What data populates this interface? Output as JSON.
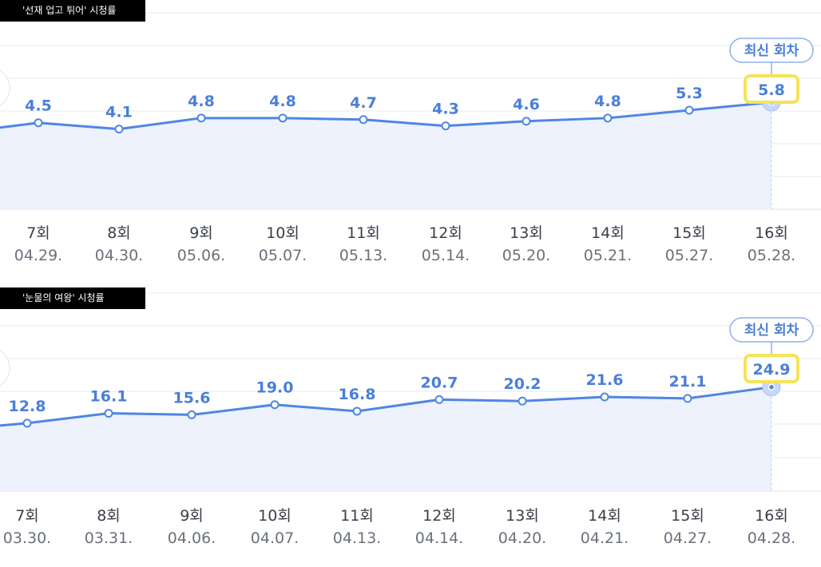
{
  "accent_color": "#4f86e3",
  "label_color": "#4a7fd8",
  "area_color": "#edf2fc",
  "highlight_color": "#f5e35a",
  "chart_data": [
    {
      "type": "area",
      "title": "'선재 업고 튀어' 시청률",
      "latest_badge": "최신 회차",
      "categories": [
        "7회",
        "8회",
        "9회",
        "10회",
        "11회",
        "12회",
        "13회",
        "14회",
        "15회",
        "16회"
      ],
      "dates": [
        "04.29.",
        "04.30.",
        "05.06.",
        "05.07.",
        "05.13.",
        "05.14.",
        "05.20.",
        "05.21.",
        "05.27.",
        "05.28."
      ],
      "values": [
        4.5,
        4.1,
        4.8,
        4.8,
        4.7,
        4.3,
        4.6,
        4.8,
        5.3,
        5.8
      ],
      "value_labels": [
        "4.5",
        "4.1",
        "4.8",
        "4.8",
        "4.7",
        "4.3",
        "4.6",
        "4.8",
        "5.3",
        "5.8"
      ],
      "ylim": [
        0,
        10
      ]
    },
    {
      "type": "area",
      "title": "'눈물의 여왕' 시청률",
      "latest_badge": "최신 회차",
      "categories": [
        "7회",
        "8회",
        "9회",
        "10회",
        "11회",
        "12회",
        "13회",
        "14회",
        "15회",
        "16회"
      ],
      "dates": [
        "03.30.",
        "03.31.",
        "04.06.",
        "04.07.",
        "04.13.",
        "04.14.",
        "04.20.",
        "04.21.",
        "04.27.",
        "04.28."
      ],
      "values": [
        12.8,
        16.1,
        15.6,
        19.0,
        16.8,
        20.7,
        20.2,
        21.6,
        21.1,
        24.9
      ],
      "value_labels": [
        "12.8",
        "16.1",
        "15.6",
        "19.0",
        "16.8",
        "20.7",
        "20.2",
        "21.6",
        "21.1",
        "24.9"
      ],
      "ylim": [
        0,
        50
      ]
    }
  ]
}
